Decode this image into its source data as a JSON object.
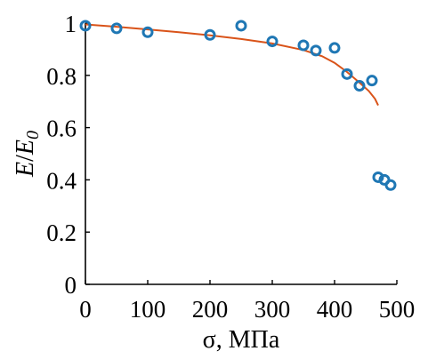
{
  "chart_data": {
    "type": "scatter",
    "xlabel": "σ, МПа",
    "ylabel_main": "E",
    "ylabel_slash": "/",
    "ylabel_sub_base": "E",
    "ylabel_sub_index": "0",
    "xlim": [
      0,
      500
    ],
    "ylim": [
      0,
      1
    ],
    "x_ticks": [
      0,
      100,
      200,
      300,
      400,
      500
    ],
    "x_tick_labels": [
      "0",
      "100",
      "200",
      "300",
      "400",
      "500"
    ],
    "y_ticks": [
      0,
      0.2,
      0.4,
      0.6,
      0.8,
      1
    ],
    "y_tick_labels": [
      "0",
      "0.2",
      "0.4",
      "0.6",
      "0.8",
      "1"
    ],
    "grid": false,
    "series": [
      {
        "type": "scatter",
        "marker": "circle-open",
        "color": "#1f77b4",
        "x": [
          0,
          50,
          100,
          200,
          250,
          300,
          350,
          370,
          400,
          420,
          440,
          460,
          470,
          480,
          490
        ],
        "y": [
          0.99,
          0.98,
          0.965,
          0.955,
          0.99,
          0.93,
          0.915,
          0.895,
          0.905,
          0.805,
          0.76,
          0.78,
          0.41,
          0.4,
          0.38
        ]
      },
      {
        "type": "line",
        "color": "#d95319",
        "x": [
          0,
          50,
          100,
          150,
          200,
          250,
          300,
          350,
          380,
          400,
          420,
          440,
          455,
          465,
          470
        ],
        "y": [
          0.995,
          0.986,
          0.976,
          0.965,
          0.953,
          0.939,
          0.922,
          0.897,
          0.873,
          0.848,
          0.813,
          0.772,
          0.74,
          0.71,
          0.685
        ]
      }
    ]
  }
}
